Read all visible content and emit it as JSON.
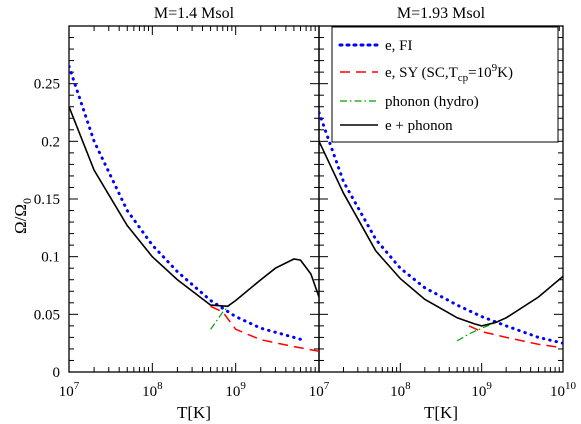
{
  "chart_data": {
    "type": "line",
    "ylabel": "Ω/Ω",
    "ylabel_sub": "0",
    "xlabel": "T[K]",
    "x_scale": "log",
    "xlim": [
      10000000,
      10000000000
    ],
    "ylim": [
      0,
      0.3
    ],
    "y_ticks": [
      0,
      0.05,
      0.1,
      0.15,
      0.2,
      0.25
    ],
    "y_tick_labels": [
      "0",
      "0.05",
      "0.1",
      "0.15",
      "0.2",
      "0.25"
    ],
    "x_tick_labels_left": [
      {
        "base": "10",
        "exp": "7"
      },
      {
        "base": "10",
        "exp": "8"
      },
      {
        "base": "10",
        "exp": "9"
      }
    ],
    "x_tick_labels_right": [
      {
        "base": "10",
        "exp": "7"
      },
      {
        "base": "10",
        "exp": "8"
      },
      {
        "base": "10",
        "exp": "9"
      },
      {
        "base": "10",
        "exp": "10"
      }
    ],
    "grid": false,
    "legend": {
      "placement": "top-right",
      "entries": [
        {
          "label": "e, FI",
          "color": "#0000ff",
          "style": "dotted"
        },
        {
          "label": "e, SY (SC,T",
          "label_sub": "cp",
          "label_mid": "=10",
          "label_sup": "9",
          "label_end": "K)",
          "color": "#ff0000",
          "style": "dashed"
        },
        {
          "label": "phonon (hydro)",
          "color": "#00a000",
          "style": "dashdot"
        },
        {
          "label": "e + phonon",
          "color": "#000000",
          "style": "solid"
        }
      ]
    },
    "panels": [
      {
        "title": "M=1.4 Msol",
        "series": [
          {
            "name": "e, FI",
            "x": [
              10000000,
              20000000,
              50000000,
              100000000,
              200000000,
              500000000,
              1000000000,
              2000000000,
              5000000000,
              7000000000
            ],
            "y": [
              0.265,
              0.2,
              0.14,
              0.11,
              0.087,
              0.062,
              0.048,
              0.038,
              0.03,
              0.027
            ]
          },
          {
            "name": "e, SY (SC,Tcp=10^9K)",
            "x": [
              500000000,
              700000000,
              1000000000,
              2000000000,
              5000000000,
              10000000000
            ],
            "y": [
              0.057,
              0.052,
              0.037,
              0.028,
              0.022,
              0.018
            ]
          },
          {
            "name": "phonon (hydro)",
            "x": [
              500000000,
              600000000,
              700000000,
              850000000
            ],
            "y": [
              0.037,
              0.045,
              0.052,
              0.058
            ]
          },
          {
            "name": "e + phonon",
            "x": [
              10000000,
              20000000,
              50000000,
              100000000,
              200000000,
              500000000,
              800000000,
              1000000000,
              2000000000,
              3000000000,
              5000000000,
              6000000000,
              8000000000,
              10000000000
            ],
            "y": [
              0.23,
              0.175,
              0.127,
              0.1,
              0.08,
              0.058,
              0.057,
              0.062,
              0.08,
              0.09,
              0.098,
              0.097,
              0.085,
              0.065
            ]
          }
        ]
      },
      {
        "title": "M=1.93 Msol",
        "series": [
          {
            "name": "e, FI",
            "x": [
              10000000,
              20000000,
              50000000,
              100000000,
              200000000,
              500000000,
              1000000000,
              2000000000,
              5000000000,
              10000000000
            ],
            "y": [
              0.225,
              0.165,
              0.115,
              0.09,
              0.073,
              0.058,
              0.048,
              0.04,
              0.03,
              0.025
            ]
          },
          {
            "name": "e, SY (SC,Tcp=10^9K)",
            "x": [
              700000000,
              1000000000,
              2000000000,
              5000000000,
              10000000000
            ],
            "y": [
              0.04,
              0.035,
              0.03,
              0.024,
              0.021
            ]
          },
          {
            "name": "phonon (hydro)",
            "x": [
              500000000,
              700000000,
              1000000000,
              1500000000,
              2000000000
            ],
            "y": [
              0.027,
              0.033,
              0.038,
              0.043,
              0.047
            ]
          },
          {
            "name": "e + phonon",
            "x": [
              10000000,
              20000000,
              50000000,
              100000000,
              200000000,
              500000000,
              800000000,
              1000000000,
              1500000000,
              2000000000,
              5000000000,
              10000000000
            ],
            "y": [
              0.2,
              0.155,
              0.105,
              0.081,
              0.063,
              0.047,
              0.042,
              0.04,
              0.043,
              0.047,
              0.065,
              0.083
            ]
          }
        ]
      }
    ]
  }
}
